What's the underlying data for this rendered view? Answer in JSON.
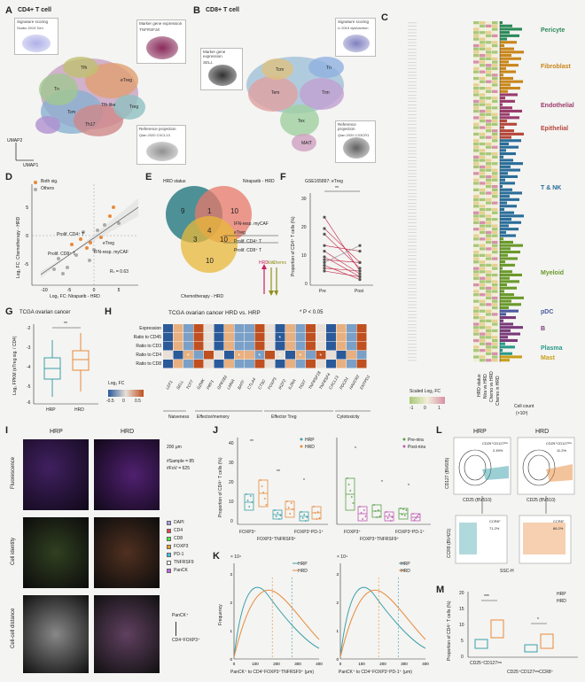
{
  "panelA": {
    "letter": "A",
    "title": "CD4+ T cell",
    "inset_sig": "Signature scoring",
    "inset_sig_sub": "Szabo 2019 Tcm",
    "inset_marker": "Marker gene expression",
    "inset_marker_gene": "TNFRSF18",
    "inset_ref": "Reference projection",
    "inset_ref_sub": "Qian 2020 CXCL13",
    "axis_x": "UMAP1",
    "axis_y": "UMAP2",
    "clusters": [
      "Tfh-like",
      "eTreg",
      "Tn",
      "Tcm",
      "Th17",
      "Tfh",
      "Treg"
    ]
  },
  "panelB": {
    "letter": "B",
    "title": "CD8+ T cell",
    "inset_marker": "Marker gene expression",
    "inset_marker_gene": "SELL",
    "inset_sig": "Signature scoring",
    "inset_sig_sub": "Li 2019 dysfunction",
    "inset_ref": "Reference projection",
    "inset_ref_sub": "Qian 2020 CX3CR1",
    "clusters": [
      "Tem",
      "Trm",
      "Tex",
      "MAIT",
      "Tn",
      "Tcm"
    ]
  },
  "panelC": {
    "letter": "C",
    "col_labels": [
      "HRD status",
      "Nira vs HRD",
      "Chemo vs HRD",
      "Chemo in HRD"
    ],
    "xlabel": "Cell count",
    "xunit": "(×10³)",
    "legend_title": "Scaled Log₂ FC",
    "legend_ticks": [
      "-1",
      "0",
      "1"
    ],
    "groups": [
      {
        "name": "Pericyte",
        "color": "#2c8a5a"
      },
      {
        "name": "Fibroblast",
        "color": "#c9861a"
      },
      {
        "name": "Endothelial",
        "color": "#9a3b6a"
      },
      {
        "name": "Epithelial",
        "color": "#b5463a"
      },
      {
        "name": "T & NK",
        "color": "#2a6d9a"
      },
      {
        "name": "Myeloid",
        "color": "#6a9a2a"
      },
      {
        "name": "pDC",
        "color": "#4a5aa0"
      },
      {
        "name": "B",
        "color": "#7a3a7a"
      },
      {
        "name": "Plasma",
        "color": "#2a9a8a"
      },
      {
        "name": "Mast",
        "color": "#c9a01a"
      }
    ]
  },
  "panelD": {
    "letter": "D",
    "ylabel": "Log₂ FC: Chemotherapy - HRD",
    "xlabel": "Log₂ FC: Niraparib - HRD",
    "legend": [
      "Both sig.",
      "Others"
    ],
    "annotations": [
      "Prolif. CD4⁺ T",
      "eTreg",
      "IFN-resp. myCAF",
      "Prolif. CD8⁺ T"
    ],
    "r_label": "Rₛ = 0.63",
    "xticks": [
      "-10",
      "-5",
      "0",
      "5"
    ],
    "yticks": [
      "-5",
      "0",
      "5"
    ]
  },
  "panelE": {
    "letter": "E",
    "hrd": "HRD status",
    "nira": "Niraparib - HRD",
    "chemo": "Chemotherapy - HRD",
    "counts": [
      "9",
      "1",
      "10",
      "4",
      "3",
      "10",
      "10"
    ],
    "list": [
      "IFN-resp. myCAF",
      "eTreg",
      "Prolif. CD4⁺ T",
      "Prolif. CD8⁺ T"
    ],
    "arrows": [
      "HRD",
      "Nira",
      "Chemo"
    ]
  },
  "panelF": {
    "letter": "F",
    "title": "GSE165897: eTreg",
    "ylabel": "Proportion of CD4⁺ T cells (%)",
    "sig": "**",
    "xticks": [
      "Pre",
      "Post"
    ],
    "yticks": [
      "0",
      "10",
      "20",
      "30"
    ],
    "chart_data": {
      "type": "line",
      "categories": [
        "Pre",
        "Post"
      ],
      "pairs": [
        [
          24,
          5
        ],
        [
          20,
          8
        ],
        [
          18,
          6
        ],
        [
          14,
          12
        ],
        [
          12,
          4
        ],
        [
          10,
          3
        ],
        [
          9,
          8
        ],
        [
          8,
          14
        ],
        [
          7,
          2
        ],
        [
          6,
          5
        ],
        [
          5,
          3
        ]
      ]
    }
  },
  "panelG": {
    "letter": "G",
    "title": "TCGA ovarian cancer",
    "ylabel": "Log₂ FPKM (eTreg sig. / CD4)",
    "sig": "**",
    "xticks": [
      "HRP",
      "HRD"
    ],
    "yticks": [
      "-2",
      "-3",
      "-4",
      "-5",
      "-6"
    ]
  },
  "panelH": {
    "letter": "H",
    "title": "TCGA ovarian cancer HRD vs. HRP",
    "sig_note": "* P < 0.05",
    "rows": [
      "Expression",
      "Ratio to CD45",
      "Ratio to CD3",
      "Ratio to CD4",
      "Ratio to CD8"
    ],
    "genes": [
      "LEF1",
      "SELL",
      "TCF7",
      "GZMK",
      "PRF1",
      "GPR183",
      "LMNA",
      "BATF",
      "CTLA4",
      "CTSC",
      "FOXP3",
      "IKZF2",
      "IL2RA",
      "TIGIT",
      "TNFRSF18",
      "TNFRSF4",
      "CXCL13",
      "PDCD1",
      "HAVCR2",
      "ENTPD1"
    ],
    "gene_label_visible": [
      "LEF1",
      "SELL",
      "TCF7",
      "GZMK",
      "PRF1",
      "GPR183",
      "LMNA",
      "BATF",
      "CTLA4",
      "CTSC",
      "FOXP3",
      "IKZF2",
      "IL2RA",
      "TIGIT",
      "TNFRSF18",
      "TNFRSF4",
      "CXCL13",
      "PDCD1",
      "HAVCR2",
      "ENTPD1"
    ],
    "categories": [
      "Naiveness",
      "Effector/memory",
      "Effector Treg",
      "Cytotoxicity"
    ],
    "legend_title": "Log₂ FC",
    "legend_ticks": [
      "-0.5",
      "0",
      "0.5"
    ]
  },
  "panelI": {
    "letter": "I",
    "cols": [
      "HRP",
      "HRD"
    ],
    "rows": [
      "Fluorescence",
      "Cell identity",
      "Cell-cell distance"
    ],
    "scale": "200 μm",
    "n_sample": "#Sample = 85",
    "n_fov": "#FoV = 625",
    "markers": [
      {
        "name": "DAPI",
        "color": "#a0a0ff"
      },
      {
        "name": "CD4",
        "color": "#ff4040"
      },
      {
        "name": "CD8",
        "color": "#40ff40"
      },
      {
        "name": "FOXP3",
        "color": "#ffa020"
      },
      {
        "name": "PD-1",
        "color": "#40c0ff"
      },
      {
        "name": "TNFRSF9",
        "color": "#ffffff"
      },
      {
        "name": "PanCK",
        "color": "#c060ff"
      }
    ],
    "distance_labels": [
      "PanCK⁺",
      "CD4⁺FOXP3⁺"
    ]
  },
  "panelJ": {
    "letter": "J",
    "ylabel": "Proportion of CD4⁺ T cells (%)",
    "left_legend": [
      "HRP",
      "HRD"
    ],
    "right_legend": [
      "Pre-nira",
      "Post-nira"
    ],
    "left_xticks": [
      "FOXP3⁺",
      "FOXP3⁺TNFRSF9⁺",
      "FOXP3⁺PD-1⁺"
    ],
    "right_xticks": [
      "FOXP3⁺",
      "FOXP3⁺TNFRSF9⁺",
      "FOXP3⁺PD-1⁺"
    ],
    "yticks": [
      "0",
      "10",
      "20",
      "30",
      "40"
    ],
    "left_sig": [
      "**",
      "**",
      "*"
    ],
    "right_sig": [
      "*",
      "*",
      "*"
    ]
  },
  "panelK": {
    "letter": "K",
    "ylabel": "Frequency",
    "scale_label": "× 10⁴",
    "legend": [
      "HRP",
      "HRD"
    ],
    "left_xlabel": "PanCK⁺ to CD4⁺FOXP3⁺TNFRSF9⁺ (μm)",
    "right_xlabel": "PanCK⁺ to CD4⁺FOXP3⁺PD-1⁺ (μm)",
    "xticks": [
      "0",
      "100",
      "200",
      "300",
      "400"
    ],
    "yticks": [
      "0",
      "1",
      "2",
      "3"
    ]
  },
  "panelL": {
    "letter": "L",
    "cols": [
      "HRP",
      "HRD"
    ],
    "gate1_hrp": "CD25⁺CD127ˡᵒʷ\n2.49%",
    "gate1_hrp_pct": "2.49%",
    "gate1_hrd_pct": "11.2%",
    "gate1_label": "CD25⁺CD127ˡᵒʷ",
    "gate2_label": "CCR8⁺",
    "gate2_hrp_pct": "71.2%",
    "gate2_hrd_pct": "86.2%",
    "ylabel1": "CD127 (BV605)",
    "xlabel1": "CD25 (BV510)",
    "ylabel2": "CCR8 (BV421)",
    "xlabel2": "SSC-H"
  },
  "panelM": {
    "letter": "M",
    "ylabel": "Proportion of CD4⁺ T cells (%)",
    "legend": [
      "HRP",
      "HRD"
    ],
    "xticks": [
      "CD25⁺CD127ˡᵒʷ",
      "CD25⁺CD127ˡᵒʷCCR8⁺"
    ],
    "sig": [
      "***",
      "*"
    ],
    "yticks": [
      "0",
      "5",
      "10",
      "15",
      "20"
    ]
  },
  "colors": {
    "hrp": "#3aa0a8",
    "hrd": "#e88a3a",
    "pre": "#5aa04a",
    "post": "#c05ab0",
    "venn_hrd": "#2f7f87",
    "venn_nira": "#e8786a",
    "venn_chemo": "#e8b83a"
  }
}
